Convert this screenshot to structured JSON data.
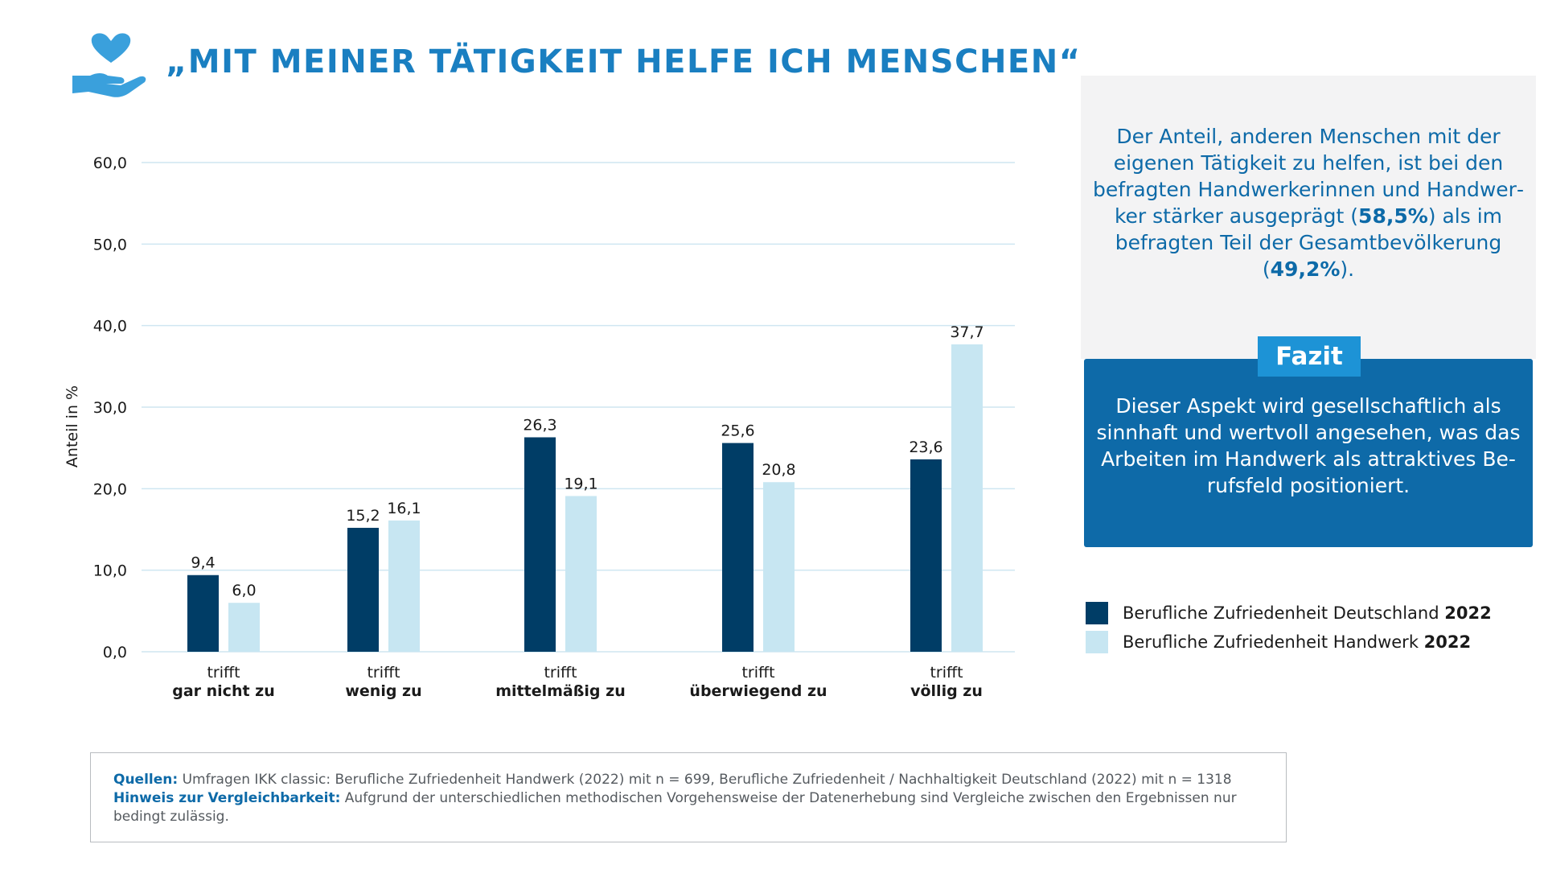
{
  "header": {
    "title": "„MIT MEINER TÄTIGKEIT HELFE ICH MENSCHEN“",
    "icon": "heart-in-hand-icon"
  },
  "colors": {
    "series_dark": "#003d66",
    "series_light": "#c7e6f2",
    "accent": "#1a7fc1",
    "fazit_bg": "#0e6aa8"
  },
  "chart_data": {
    "type": "bar",
    "title": "",
    "ylabel": "Anteil in %",
    "xlabel": "",
    "ylim": [
      0,
      60
    ],
    "yticks": [
      "0,0",
      "10,0",
      "20,0",
      "30,0",
      "40,0",
      "50,0",
      "60,0"
    ],
    "categories": [
      {
        "line1": "trifft",
        "line2": "gar nicht zu"
      },
      {
        "line1": "trifft",
        "line2": "wenig zu"
      },
      {
        "line1": "trifft",
        "line2": "mittelmäßig zu"
      },
      {
        "line1": "trifft",
        "line2": "überwiegend zu"
      },
      {
        "line1": "trifft",
        "line2": "völlig zu"
      }
    ],
    "series": [
      {
        "name": "Berufliche Zufriedenheit Deutschland 2022",
        "values": [
          9.4,
          15.2,
          26.3,
          25.6,
          23.6
        ],
        "labels": [
          "9,4",
          "15,2",
          "26,3",
          "25,6",
          "23,6"
        ]
      },
      {
        "name": "Berufliche Zufriedenheit Handwerk 2022",
        "values": [
          6.0,
          16.1,
          19.1,
          20.8,
          37.7
        ],
        "labels": [
          "6,0",
          "16,1",
          "19,1",
          "20,8",
          "37,7"
        ]
      }
    ],
    "grid": true,
    "legend_position": "right"
  },
  "info": {
    "text_parts": [
      "Der Anteil, anderen Menschen mit der eigenen Tätigkeit zu helfen, ist bei den befragten Handwerkerinnen und Handwer­ker stärker ausgeprägt (",
      "58,5%",
      ") als im befragten Teil der Gesamtbevölkerung (",
      "49,2%",
      ")."
    ]
  },
  "fazit": {
    "label": "Fazit",
    "text": "Dieser Aspekt wird gesellschaft­lich als sinnhaft und wertvoll angesehen, was das Arbeiten im Handwerk als attraktives Be­rufsfeld positioniert."
  },
  "legend": [
    {
      "text": "Berufliche Zufriedenheit Deutschland ",
      "year": "2022"
    },
    {
      "text": "Berufliche Zufriedenheit Handwerk ",
      "year": "2022"
    }
  ],
  "sources": {
    "label": "Quellen:",
    "text": "Umfragen IKK classic: Berufliche Zufriedenheit Handwerk (2022) mit n = 699, Berufliche Zufriedenheit / Nachhaltigkeit Deutschland (2022) mit n = 1318",
    "note_label": "Hinweis zur Vergleichbarkeit:",
    "note_text": "Aufgrund der unterschiedlichen methodischen Vorgehensweise der Datenerhebung sind Vergleiche zwischen den Ergebnissen nur bedingt zulässig."
  }
}
